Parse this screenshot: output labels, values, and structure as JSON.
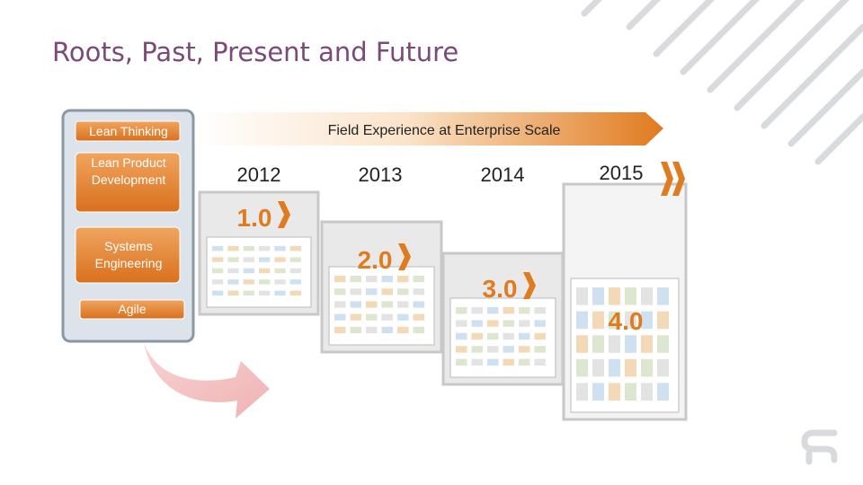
{
  "title": "Roots, Past, Present and Future",
  "roots": [
    "Lean Thinking",
    "Lean Product Development",
    "Systems Engineering",
    "Agile"
  ],
  "banner": "Field Experience at Enterprise Scale",
  "timeline": [
    {
      "year": "2012",
      "version": "1.0"
    },
    {
      "year": "2013",
      "version": "2.0"
    },
    {
      "year": "2014",
      "version": "3.0"
    },
    {
      "year": "2015",
      "version": "4.0"
    }
  ]
}
